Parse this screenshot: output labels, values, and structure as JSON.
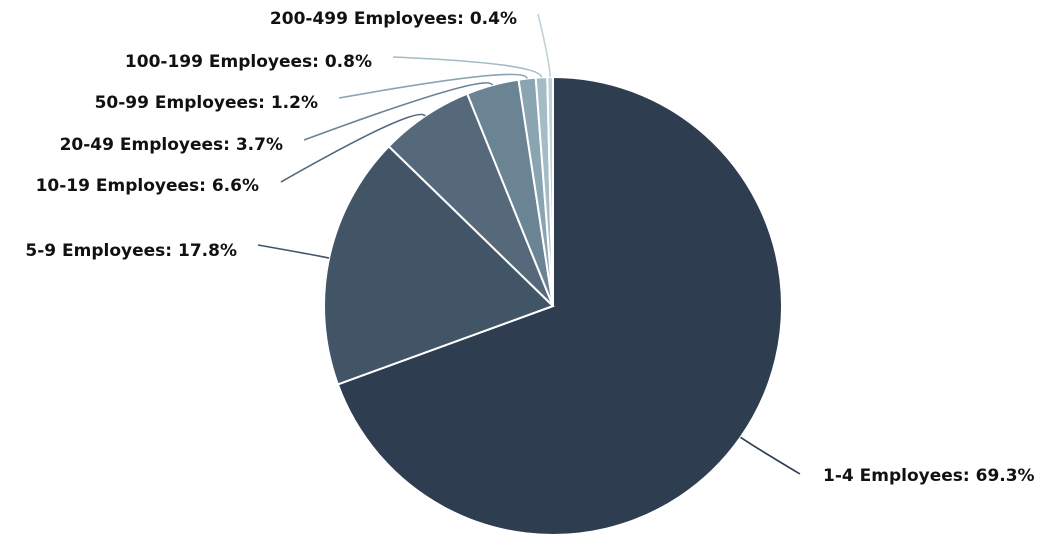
{
  "chart_data": {
    "type": "pie",
    "title": "",
    "slices": [
      {
        "label": "1-4 Employees",
        "value": 69.3,
        "display": "1-4 Employees: 69.3%",
        "color": "#2e3d4f"
      },
      {
        "label": "5-9 Employees",
        "value": 17.8,
        "display": "5-9 Employees: 17.8%",
        "color": "#425566"
      },
      {
        "label": "10-19 Employees",
        "value": 6.6,
        "display": "10-19 Employees: 6.6%",
        "color": "#55697a"
      },
      {
        "label": "20-49 Employees",
        "value": 3.7,
        "display": "20-49 Employees: 3.7%",
        "color": "#6b8493"
      },
      {
        "label": "50-99 Employees",
        "value": 1.2,
        "display": "50-99 Employees: 1.2%",
        "color": "#8aa4b1"
      },
      {
        "label": "100-199 Employees",
        "value": 0.8,
        "display": "100-199 Employees: 0.8%",
        "color": "#a3bcc6"
      },
      {
        "label": "200-499 Employees",
        "value": 0.4,
        "display": "200-499 Employees: 0.4%",
        "color": "#bed2d8"
      }
    ],
    "start_angle": "12 o'clock",
    "direction": "clockwise",
    "legend": "none",
    "labels": "outside with leader lines"
  }
}
